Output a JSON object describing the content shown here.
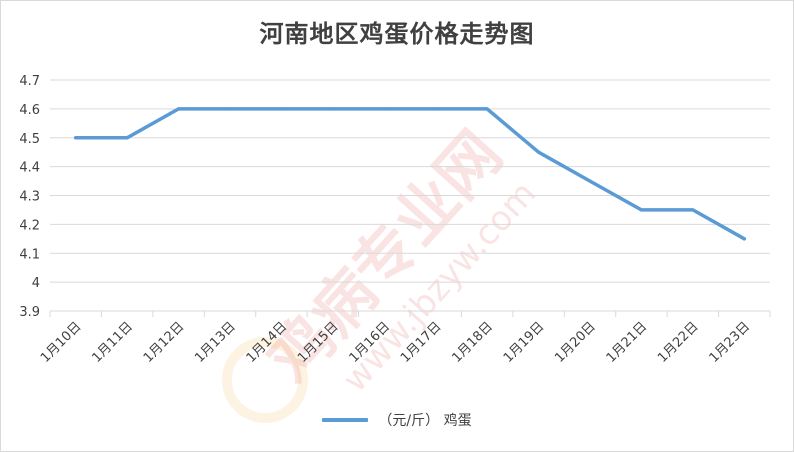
{
  "chart_data": {
    "type": "line",
    "title": "河南地区鸡蛋价格走势图",
    "xlabel": "",
    "ylabel": "",
    "categories": [
      "1月10日",
      "1月11日",
      "1月12日",
      "1月13日",
      "1月14日",
      "1月15日",
      "1月16日",
      "1月17日",
      "1月18日",
      "1月19日",
      "1月20日",
      "1月21日",
      "1月22日",
      "1月23日"
    ],
    "series": [
      {
        "name": "（元/斤） 鸡蛋",
        "color": "#5b9bd5",
        "values": [
          4.5,
          4.5,
          4.6,
          4.6,
          4.6,
          4.6,
          4.6,
          4.6,
          4.6,
          4.45,
          4.35,
          4.25,
          4.25,
          4.15
        ]
      }
    ],
    "ylim": [
      3.9,
      4.7
    ],
    "yticks": [
      "3.9",
      "4",
      "4.1",
      "4.2",
      "4.3",
      "4.4",
      "4.5",
      "4.6",
      "4.7"
    ],
    "grid": true,
    "legend_position": "bottom"
  },
  "watermark": {
    "brand": "鸡病专业网",
    "url": "www.jbzyw.com"
  }
}
